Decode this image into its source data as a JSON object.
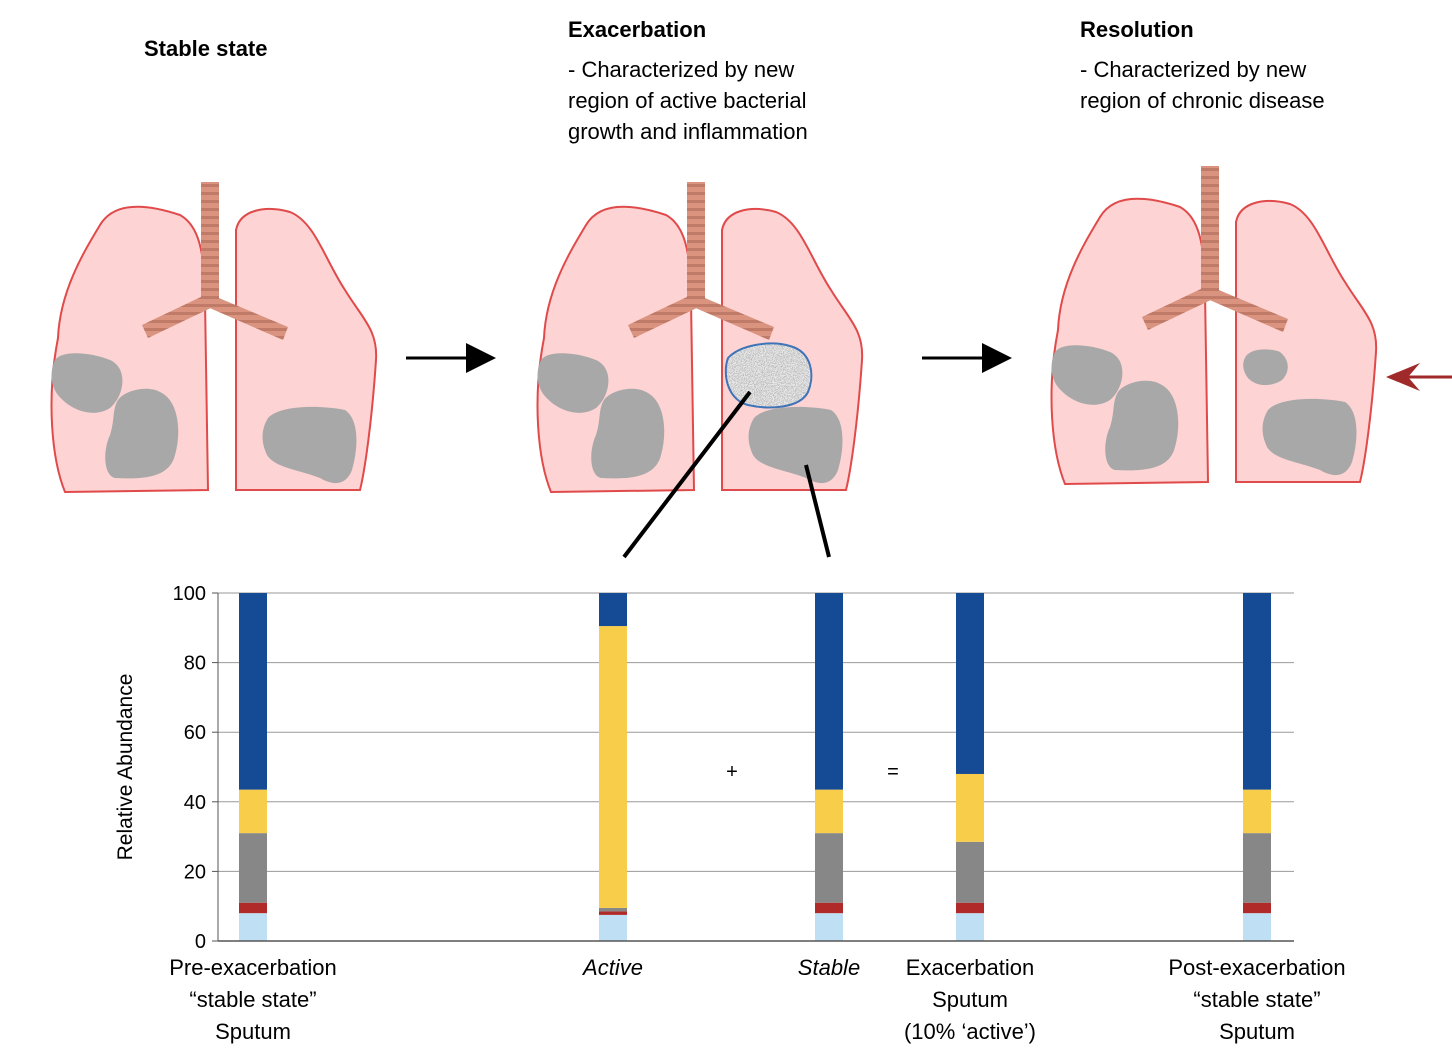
{
  "stages": [
    {
      "title": "Stable state",
      "description": ""
    },
    {
      "title": "Exacerbation",
      "description": "- Characterized by new\nregion of active bacterial\ngrowth and inflammation"
    },
    {
      "title": "Resolution",
      "description": "- Characterized by new\nregion of chronic disease"
    }
  ],
  "colors": {
    "lung_fill": "#fdd3d3",
    "lung_stroke": "#e04a4a",
    "trachea": "#d9937f",
    "lesion": "#a8a8a8",
    "active_region_border": "#3e74b8",
    "arrow": "#000000",
    "highlight_arrow": "#a02a2a"
  },
  "operators": {
    "plus": "+",
    "equals": "="
  },
  "chart_data": {
    "type": "bar",
    "stacked": true,
    "ylabel": "Relative Abundance",
    "ylim": [
      0,
      100
    ],
    "yticks": [
      0,
      20,
      40,
      60,
      80,
      100
    ],
    "grid": true,
    "categories": [
      {
        "label": "Pre-exacerbation\n“stable state”\nSputum",
        "italic": false
      },
      {
        "label": "Active",
        "italic": true
      },
      {
        "label": "Stable",
        "italic": true
      },
      {
        "label": "Exacerbation\nSputum\n(10% ‘active’)",
        "italic": false
      },
      {
        "label": "Post-exacerbation\n“stable state”\nSputum",
        "italic": false
      }
    ],
    "series": [
      {
        "color": "#bfdff5",
        "values": [
          8,
          7.5,
          8,
          8,
          8
        ]
      },
      {
        "color": "#b02a2a",
        "values": [
          3,
          1,
          3,
          3,
          3
        ]
      },
      {
        "color": "#878787",
        "values": [
          20,
          1,
          20,
          17.5,
          20
        ]
      },
      {
        "color": "#f8cd4a",
        "values": [
          12.5,
          81,
          12.5,
          19.5,
          12.5
        ]
      },
      {
        "color": "#154a94",
        "values": [
          56.5,
          9.5,
          56.5,
          52,
          56.5
        ]
      }
    ]
  }
}
